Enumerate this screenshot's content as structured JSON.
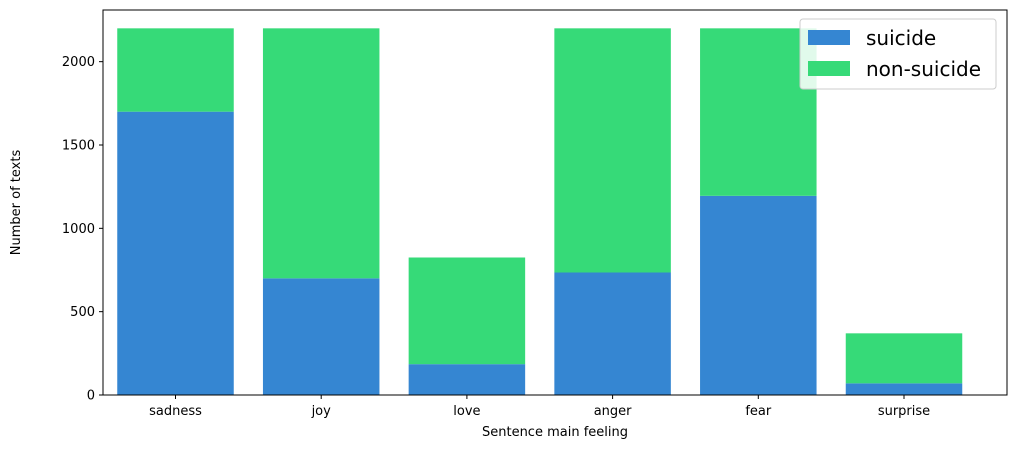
{
  "chart_data": {
    "type": "bar",
    "stacked": true,
    "categories": [
      "sadness",
      "joy",
      "love",
      "anger",
      "fear",
      "surprise"
    ],
    "series": [
      {
        "name": "suicide",
        "color": "#3586d2",
        "values": [
          1700,
          700,
          185,
          735,
          1195,
          70
        ]
      },
      {
        "name": "non-suicide",
        "color": "#36da78",
        "values": [
          500,
          1500,
          640,
          1465,
          1005,
          300
        ]
      }
    ],
    "xlabel": "Sentence main feeling",
    "ylabel": "Number of texts",
    "ylim": [
      0,
      2310
    ],
    "yticks": [
      0,
      500,
      1000,
      1500,
      2000
    ],
    "grid": false,
    "legend_position": "top-right"
  }
}
